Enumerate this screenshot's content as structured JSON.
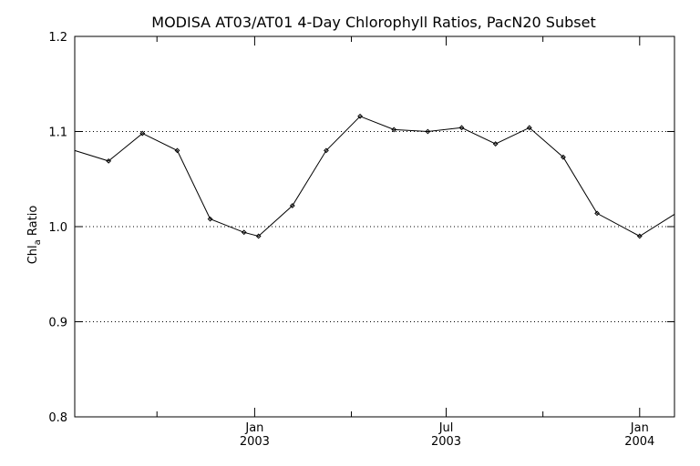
{
  "chart_data": {
    "type": "line",
    "title": "MODISA AT03/AT01 4-Day Chlorophyll Ratios, PacN20 Subset",
    "ylabel": {
      "main": "Chl",
      "subscript": "a",
      "suffix": " Ratio"
    },
    "xlabel": "",
    "xlim": [
      0,
      31
    ],
    "ylim": [
      0.8,
      1.2
    ],
    "grid": "horizontal-dotted",
    "x_major_ticks": [
      {
        "x": 9.3,
        "label": "Jan",
        "label2": "2003"
      },
      {
        "x": 19.2,
        "label": "Jul",
        "label2": "2003"
      },
      {
        "x": 29.2,
        "label": "Jan",
        "label2": "2004"
      }
    ],
    "x_minor_ticks": [
      4.25,
      14.3,
      24.2
    ],
    "y_ticks": [
      {
        "value": 0.8,
        "label": "0.8"
      },
      {
        "value": 0.9,
        "label": "0.9"
      },
      {
        "value": 1.0,
        "label": "1.0"
      },
      {
        "value": 1.1,
        "label": "1.1"
      },
      {
        "value": 1.2,
        "label": "1.2"
      }
    ],
    "gridlines": [
      0.9,
      1.0,
      1.1
    ],
    "series": [
      {
        "color": "#000000",
        "marker": "diamond",
        "x": [
          0,
          1.75,
          3.5,
          5.3,
          7.0,
          8.75,
          9.5,
          11.25,
          13.0,
          14.75,
          16.5,
          18.25,
          20.0,
          21.75,
          23.5,
          25.25,
          27.0,
          29.2,
          31.0
        ],
        "y": [
          1.08,
          1.069,
          1.098,
          1.08,
          1.008,
          0.994,
          0.99,
          1.022,
          1.08,
          1.116,
          1.102,
          1.1,
          1.104,
          1.087,
          1.104,
          1.073,
          1.014,
          0.99,
          1.013
        ]
      }
    ]
  }
}
